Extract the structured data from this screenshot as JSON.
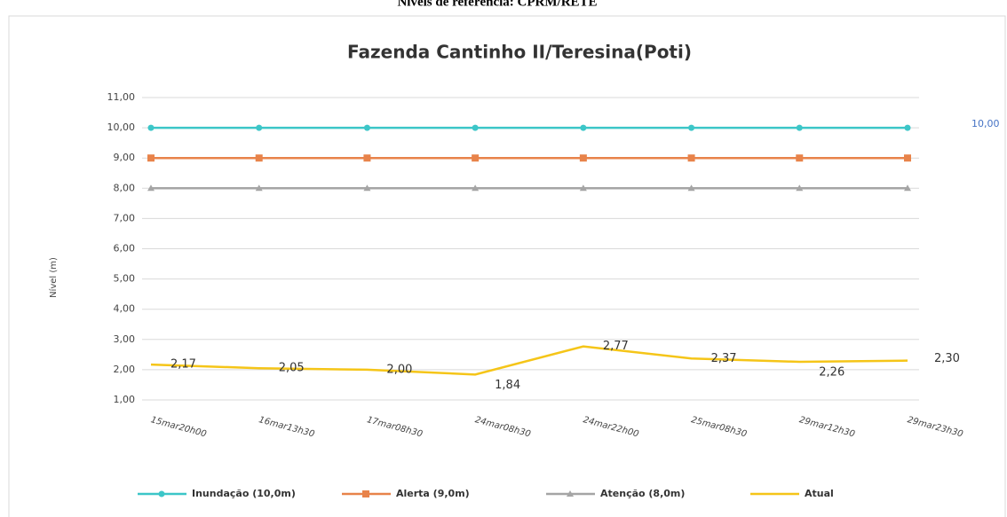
{
  "chart_data": {
    "type": "line",
    "caption": "Níveis de referência: CPRM/RETE",
    "title": "Fazenda Cantinho II/Teresina(Poti)",
    "y_label": "Nível (m)",
    "categories": [
      "15mar20h00",
      "16mar13h30",
      "17mar08h30",
      "24mar08h30",
      "24mar22h00",
      "25mar08h30",
      "29mar12h30",
      "29mar23h30"
    ],
    "series": [
      {
        "name": "Inundação (10,0m)",
        "color": "#3cc6c8",
        "marker": "circle",
        "values": [
          10,
          10,
          10,
          10,
          10,
          10,
          10,
          10
        ],
        "value_labels": [
          null,
          null,
          null,
          null,
          null,
          null,
          null,
          "10,00"
        ]
      },
      {
        "name": "Alerta (9,0m)",
        "color": "#e8834a",
        "marker": "square",
        "values": [
          9,
          9,
          9,
          9,
          9,
          9,
          9,
          9
        ]
      },
      {
        "name": "Atenção (8,0m)",
        "color": "#a5a5a5",
        "marker": "triangle",
        "values": [
          8,
          8,
          8,
          8,
          8,
          8,
          8,
          8
        ]
      },
      {
        "name": "Atual",
        "color": "#f5c518",
        "marker": "none",
        "values": [
          2.17,
          2.05,
          2.0,
          1.84,
          2.77,
          2.37,
          2.26,
          2.3
        ],
        "value_labels": [
          "2,17",
          "2,05",
          "2,00",
          "1,84",
          "2,77",
          "2,37",
          "2,26",
          "2,30"
        ]
      }
    ],
    "ylim": [
      1,
      11
    ],
    "yticks": [
      {
        "value": 1,
        "label": "1,00"
      },
      {
        "value": 2,
        "label": "2,00"
      },
      {
        "value": 3,
        "label": "3,00"
      },
      {
        "value": 4,
        "label": "4,00"
      },
      {
        "value": 5,
        "label": "5,00"
      },
      {
        "value": 6,
        "label": "6,00"
      },
      {
        "value": 7,
        "label": "7,00"
      },
      {
        "value": 8,
        "label": "8,00"
      },
      {
        "value": 9,
        "label": "9,00"
      },
      {
        "value": 10,
        "label": "10,00"
      },
      {
        "value": 11,
        "label": "11,00"
      }
    ],
    "grid": true,
    "legend": "bottom"
  }
}
